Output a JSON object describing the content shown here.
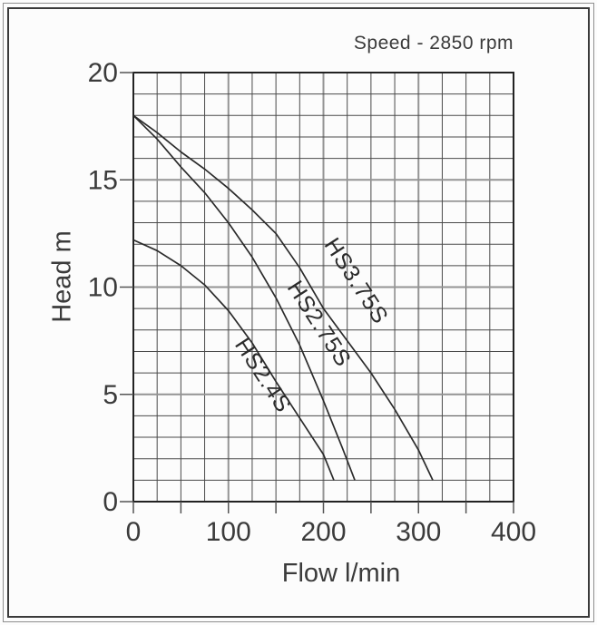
{
  "chart_data": {
    "type": "line",
    "title": "Speed - 2850 rpm",
    "xlabel": "Flow l/min",
    "ylabel": "Head m",
    "xlim": [
      0,
      400
    ],
    "ylim": [
      0,
      20
    ],
    "x_ticks": [
      0,
      100,
      200,
      300,
      400
    ],
    "y_ticks": [
      0,
      5,
      10,
      15,
      20
    ],
    "x_tick_mark_step": 50,
    "y_tick_mark_step": 5,
    "x_minor_grid_step": 25,
    "x_major_grid_step": 100,
    "y_minor_grid_step": 1,
    "y_major_grid_step": 5,
    "grid": "on",
    "legend_position": "labels-on-curves",
    "series": [
      {
        "name": "HS3.75S",
        "points": [
          [
            0,
            18
          ],
          [
            25,
            17.2
          ],
          [
            50,
            16.3
          ],
          [
            75,
            15.5
          ],
          [
            100,
            14.6
          ],
          [
            125,
            13.6
          ],
          [
            150,
            12.5
          ],
          [
            175,
            10.9
          ],
          [
            200,
            9.0
          ],
          [
            225,
            7.5
          ],
          [
            250,
            6.0
          ],
          [
            275,
            4.3
          ],
          [
            300,
            2.4
          ],
          [
            315,
            1.0
          ]
        ],
        "label_at": [
          228,
          10.1
        ],
        "label_angle_deg": 57
      },
      {
        "name": "HS2.75S",
        "points": [
          [
            0,
            18
          ],
          [
            25,
            16.9
          ],
          [
            50,
            15.6
          ],
          [
            75,
            14.4
          ],
          [
            100,
            13.0
          ],
          [
            125,
            11.4
          ],
          [
            150,
            9.5
          ],
          [
            175,
            7.3
          ],
          [
            200,
            4.7
          ],
          [
            220,
            2.5
          ],
          [
            233,
            1.0
          ]
        ],
        "label_at": [
          189,
          8.1
        ],
        "label_angle_deg": 57
      },
      {
        "name": "HS2.4S",
        "points": [
          [
            0,
            12.2
          ],
          [
            25,
            11.7
          ],
          [
            50,
            11.0
          ],
          [
            75,
            10.1
          ],
          [
            100,
            8.9
          ],
          [
            125,
            7.4
          ],
          [
            150,
            5.6
          ],
          [
            175,
            3.9
          ],
          [
            200,
            2.2
          ],
          [
            211,
            1.0
          ]
        ],
        "label_at": [
          130,
          5.7
        ],
        "label_angle_deg": 57
      }
    ],
    "colors": {
      "curve": "#2b2b2b",
      "minor_grid": "#4a4a4a",
      "major_grid": "#949494",
      "plot_border": "#222222",
      "tick": "#555555",
      "text": "#3b3b3b"
    }
  }
}
